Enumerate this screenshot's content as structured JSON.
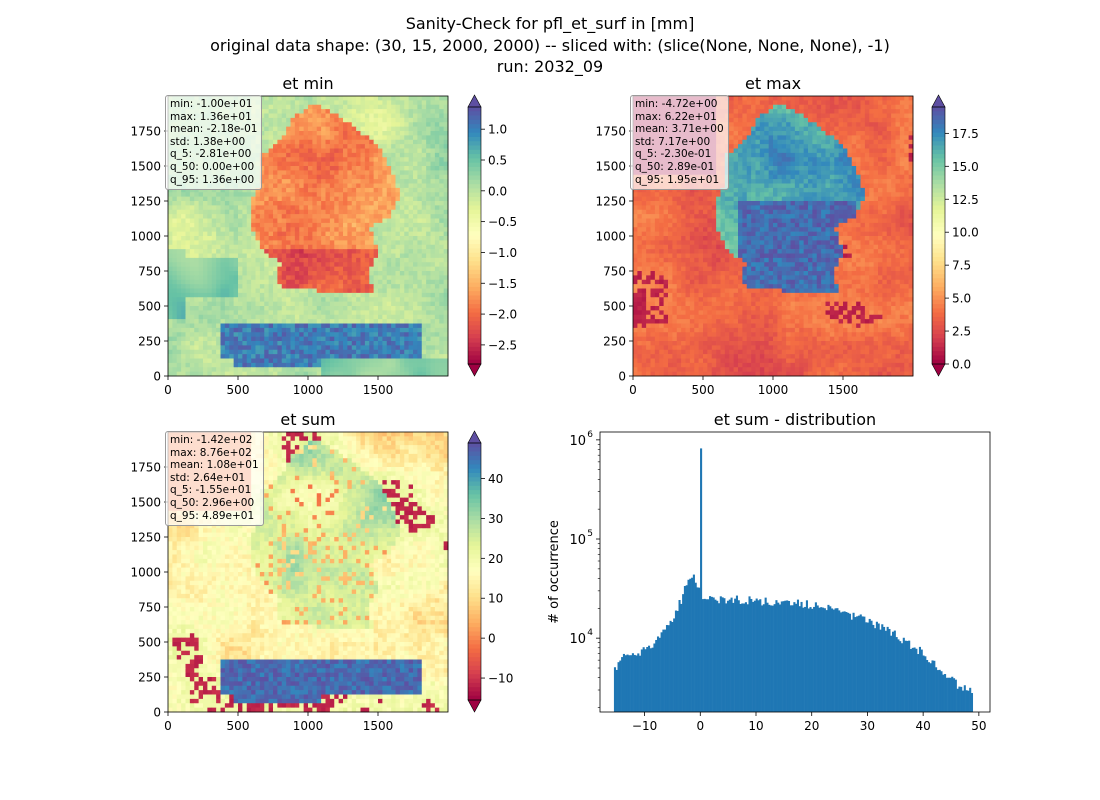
{
  "figure": {
    "title_lines": [
      "Sanity-Check for pfl_et_surf in [mm]",
      "original data shape: (30, 15, 2000, 2000) -- sliced with: (slice(None, None, None), -1)",
      "run: 2032_09"
    ]
  },
  "chart_data": [
    {
      "type": "heatmap",
      "title": "et min",
      "xlim": [
        0,
        2000
      ],
      "ylim": [
        0,
        2000
      ],
      "x_ticks": [
        "0",
        "500",
        "1000",
        "1500"
      ],
      "y_ticks": [
        "0",
        "250",
        "500",
        "750",
        "1000",
        "1250",
        "1500",
        "1750"
      ],
      "colormap": "Spectral",
      "color_range": [
        -2.81,
        1.36
      ],
      "colorbar_ticks": [
        "1.0",
        "0.5",
        "0.0",
        "−0.5",
        "−1.0",
        "−1.5",
        "−2.0",
        "−2.5"
      ],
      "stats": [
        "min: -1.00e+01",
        "max: 1.36e+01",
        "mean: -2.18e-01",
        "std: 1.38e+00",
        "q_5: -2.81e+00",
        "q_50: 0.00e+00",
        "q_95: 1.36e+00"
      ]
    },
    {
      "type": "heatmap",
      "title": "et max",
      "xlim": [
        0,
        2000
      ],
      "ylim": [
        0,
        2000
      ],
      "x_ticks": [
        "0",
        "500",
        "1000",
        "1500"
      ],
      "y_ticks": [
        "0",
        "250",
        "500",
        "750",
        "1000",
        "1250",
        "1500",
        "1750"
      ],
      "colormap": "Spectral",
      "color_range": [
        0,
        19.5
      ],
      "colorbar_ticks": [
        "17.5",
        "15.0",
        "12.5",
        "10.0",
        "7.5",
        "5.0",
        "2.5",
        "0.0"
      ],
      "stats": [
        "min: -4.72e+00",
        "max: 6.22e+01",
        "mean: 3.71e+00",
        "std: 7.17e+00",
        "q_5: -2.30e-01",
        "q_50: 2.89e-01",
        "q_95: 1.95e+01"
      ]
    },
    {
      "type": "heatmap",
      "title": "et sum",
      "xlim": [
        0,
        2000
      ],
      "ylim": [
        0,
        2000
      ],
      "x_ticks": [
        "0",
        "500",
        "1000",
        "1500"
      ],
      "y_ticks": [
        "0",
        "250",
        "500",
        "750",
        "1000",
        "1250",
        "1500",
        "1750"
      ],
      "colormap": "Spectral",
      "color_range": [
        -15.5,
        48.9
      ],
      "colorbar_ticks": [
        "40",
        "30",
        "20",
        "10",
        "0",
        "−10"
      ],
      "stats": [
        "min: -1.42e+02",
        "max: 8.76e+02",
        "mean: 1.08e+01",
        "std: 2.64e+01",
        "q_5: -1.55e+01",
        "q_50: 2.96e+00",
        "q_95: 4.89e+01"
      ]
    },
    {
      "type": "bar",
      "title": "et sum - distribution",
      "xlabel": "",
      "ylabel": "# of occurrence",
      "y_scale": "log",
      "xlim": [
        -18,
        52
      ],
      "ylim": [
        1800,
        1200000
      ],
      "x_ticks": [
        "−10",
        "0",
        "10",
        "20",
        "30",
        "40",
        "50"
      ],
      "y_ticks": [
        "10",
        "10",
        "10"
      ],
      "y_tick_exponents": [
        "4",
        "5",
        "6"
      ],
      "bar_color": "#1f77b4",
      "bin_range": [
        -15.5,
        48.9
      ],
      "bin_count": 200,
      "x_peak": 0,
      "y_peak": 820000,
      "profile": [
        [
          -15.5,
          5000
        ],
        [
          -14,
          6200
        ],
        [
          -12,
          6800
        ],
        [
          -10,
          7800
        ],
        [
          -8,
          9500
        ],
        [
          -6,
          13000
        ],
        [
          -4,
          20000
        ],
        [
          -2.5,
          34000
        ],
        [
          -1.5,
          45000
        ],
        [
          -0.6,
          32000
        ],
        [
          0.5,
          27000
        ],
        [
          2,
          25000
        ],
        [
          5,
          24500
        ],
        [
          10,
          24000
        ],
        [
          15,
          23500
        ],
        [
          20,
          22000
        ],
        [
          25,
          19000
        ],
        [
          30,
          15000
        ],
        [
          35,
          11000
        ],
        [
          40,
          7000
        ],
        [
          44,
          4500
        ],
        [
          46,
          3500
        ],
        [
          48,
          3000
        ],
        [
          48.9,
          2800
        ]
      ]
    }
  ]
}
